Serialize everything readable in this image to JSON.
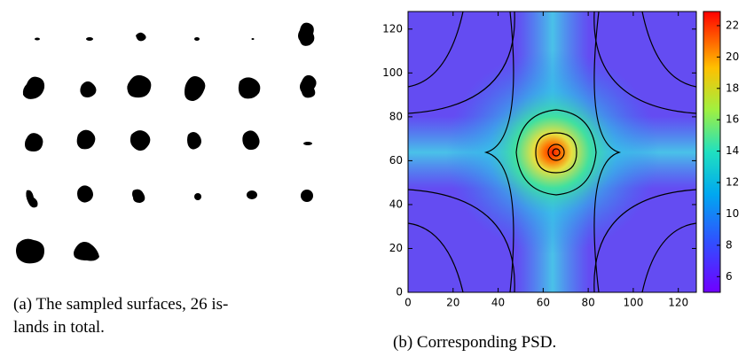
{
  "figure_a": {
    "caption": [
      "(a) The sampled surfaces, 26 is-",
      "lands in total."
    ]
  },
  "chart_data": {
    "type": "heatmap",
    "caption": "(b) Corresponding PSD.",
    "xlim": [
      0,
      128
    ],
    "ylim": [
      0,
      128
    ],
    "xticks": [
      0,
      20,
      40,
      60,
      80,
      100,
      120
    ],
    "yticks": [
      0,
      20,
      40,
      60,
      80,
      100,
      120
    ],
    "colorbar": {
      "lim": [
        5,
        22.9
      ],
      "ticks": [
        6,
        8,
        10,
        12,
        14,
        16,
        18,
        20,
        22
      ]
    }
  }
}
